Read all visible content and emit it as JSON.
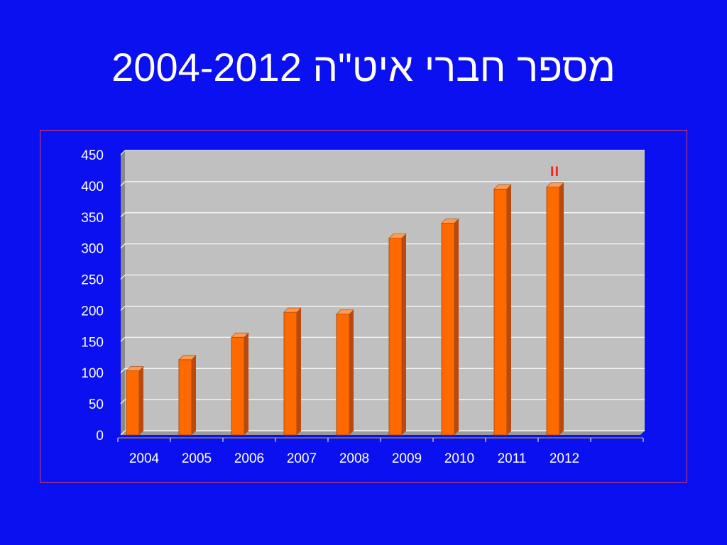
{
  "title": "מספר חברי איט\"ה 2004-2012",
  "chart_data": {
    "type": "bar",
    "title": "",
    "xlabel": "",
    "ylabel": "",
    "categories": [
      "2004",
      "2005",
      "2006",
      "2007",
      "2008",
      "2009",
      "2010",
      "2011",
      "2012"
    ],
    "values": [
      103,
      121,
      157,
      197,
      194,
      316,
      340,
      395,
      398
    ],
    "ylim": [
      0,
      450
    ],
    "yticks": [
      "0",
      "50",
      "100",
      "150",
      "200",
      "250",
      "300",
      "350",
      "400",
      "450"
    ],
    "grid": true,
    "legend": "none",
    "annotation": "וו",
    "colors": {
      "bar": "#ff6a00",
      "bar_side": "#b84a10",
      "plot_bg": "#c0c0c0",
      "wall": "#8a8a8a",
      "background": "#0a10f0",
      "annotation": "#ff2020",
      "frame": "#e0405a"
    }
  }
}
